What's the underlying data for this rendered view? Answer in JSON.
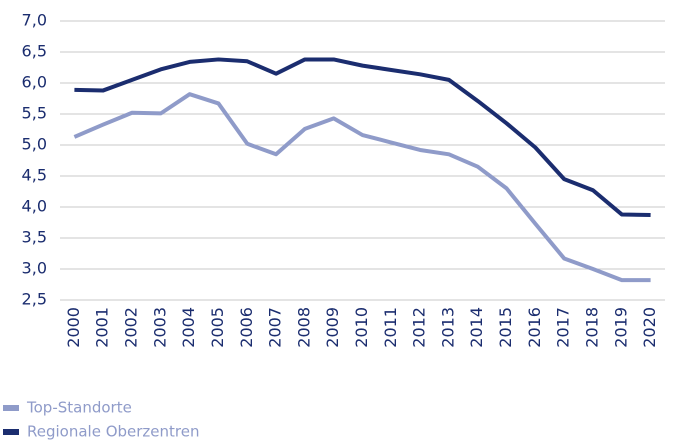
{
  "chart_data": {
    "type": "line",
    "categories": [
      "2000",
      "2001",
      "2002",
      "2003",
      "2004",
      "2005",
      "2006",
      "2007",
      "2008",
      "2009",
      "2010",
      "2011",
      "2012",
      "2013",
      "2014",
      "2015",
      "2016",
      "2017",
      "2018",
      "2019",
      "2020"
    ],
    "series": [
      {
        "name": "Top-Standorte",
        "color": "#8f9bc9",
        "values": [
          5.13,
          5.33,
          5.52,
          5.51,
          5.82,
          5.67,
          5.02,
          4.85,
          5.26,
          5.43,
          5.16,
          5.04,
          4.92,
          4.85,
          4.65,
          4.3,
          3.73,
          3.17,
          3.0,
          2.82,
          2.82
        ]
      },
      {
        "name": "Regionale Oberzentren",
        "color": "#1b2d6f",
        "values": [
          5.89,
          5.88,
          6.05,
          6.22,
          6.34,
          6.38,
          6.35,
          6.15,
          6.38,
          6.38,
          6.28,
          6.21,
          6.14,
          6.05,
          5.71,
          5.35,
          4.96,
          4.45,
          4.27,
          3.88,
          3.87
        ]
      }
    ],
    "ylim": [
      2.5,
      7.0
    ],
    "yticks": [
      {
        "value": 2.5,
        "label": "2,5"
      },
      {
        "value": 3.0,
        "label": "3,0"
      },
      {
        "value": 3.5,
        "label": "3,5"
      },
      {
        "value": 4.0,
        "label": "4,0"
      },
      {
        "value": 4.5,
        "label": "4,5"
      },
      {
        "value": 5.0,
        "label": "5,0"
      },
      {
        "value": 5.5,
        "label": "5,5"
      },
      {
        "value": 6.0,
        "label": "6,0"
      },
      {
        "value": 6.5,
        "label": "6,5"
      },
      {
        "value": 7.0,
        "label": "7,0"
      }
    ],
    "grid": true
  }
}
